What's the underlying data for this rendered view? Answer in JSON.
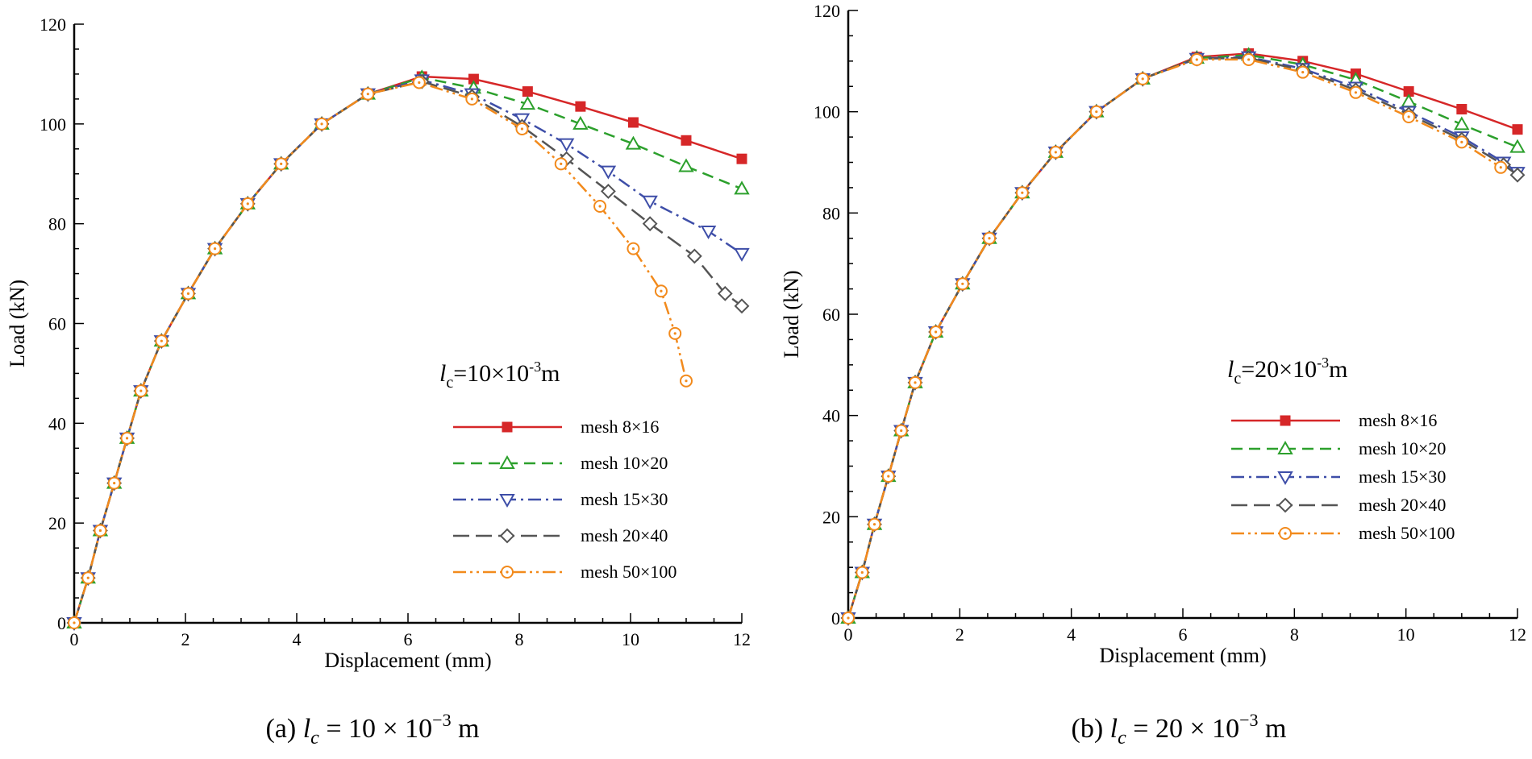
{
  "chart_data": [
    {
      "type": "line",
      "caption_prefix": "(a)",
      "caption_var": "l",
      "caption_sub": "c",
      "caption_rest": " = 10 × 10",
      "caption_exp": "−3",
      "caption_unit": " m",
      "annotation": {
        "var": "l",
        "sub": "c",
        "text": "=10×10",
        "exp": "-3",
        "unit": "m"
      },
      "xlabel": "Displacement (mm)",
      "ylabel": "Load (kN)",
      "xlim": [
        0,
        12
      ],
      "ylim": [
        0,
        120
      ],
      "xticks": [
        0,
        2,
        4,
        6,
        8,
        10,
        12
      ],
      "yticks": [
        0,
        20,
        40,
        60,
        80,
        100,
        120
      ],
      "series": [
        {
          "name": "mesh 8×16",
          "color": "#d62728",
          "marker": "square",
          "dash": "",
          "x": [
            0,
            0.25,
            0.47,
            0.72,
            0.95,
            1.2,
            1.57,
            2.05,
            2.53,
            3.12,
            3.72,
            4.45,
            5.28,
            6.25,
            7.18,
            8.15,
            9.1,
            10.05,
            11.0,
            12.0
          ],
          "y": [
            0,
            9,
            18.5,
            28,
            37,
            46.5,
            56.5,
            66,
            75,
            84,
            92,
            100,
            106,
            109.5,
            109,
            106.5,
            103.5,
            100.3,
            96.7,
            93
          ]
        },
        {
          "name": "mesh 10×20",
          "color": "#2ca02c",
          "marker": "triangle-up",
          "dash": "14,8",
          "x": [
            0,
            0.25,
            0.47,
            0.72,
            0.95,
            1.2,
            1.57,
            2.05,
            2.53,
            3.12,
            3.72,
            4.45,
            5.28,
            6.25,
            7.18,
            8.15,
            9.1,
            10.05,
            11.0,
            12.0
          ],
          "y": [
            0,
            9,
            18.5,
            28,
            37,
            46.5,
            56.5,
            66,
            75,
            84,
            92,
            100,
            106,
            109.3,
            107.2,
            104,
            100,
            96,
            91.5,
            87
          ]
        },
        {
          "name": "mesh 15×30",
          "color": "#3e4ea8",
          "marker": "triangle-down",
          "dash": "16,6,3,6",
          "x": [
            0,
            0.25,
            0.47,
            0.72,
            0.95,
            1.2,
            1.57,
            2.05,
            2.53,
            3.12,
            3.72,
            4.45,
            5.28,
            6.25,
            7.15,
            8.05,
            8.85,
            9.6,
            10.35,
            11.4,
            12.0
          ],
          "y": [
            0,
            9,
            18.5,
            28,
            37,
            46.5,
            56.5,
            66,
            75,
            84,
            92,
            100,
            106,
            108.8,
            106,
            101,
            96,
            90.5,
            84.5,
            78.5,
            74
          ]
        },
        {
          "name": "mesh 20×40",
          "color": "#555555",
          "marker": "diamond",
          "dash": "20,8",
          "x": [
            0,
            0.25,
            0.47,
            0.72,
            0.95,
            1.2,
            1.57,
            2.05,
            2.53,
            3.12,
            3.72,
            4.45,
            5.28,
            6.25,
            7.15,
            8.05,
            8.85,
            9.6,
            10.35,
            11.15,
            11.7,
            12.0
          ],
          "y": [
            0,
            9,
            18.5,
            28,
            37,
            46.5,
            56.5,
            66,
            75,
            84,
            92,
            100,
            106,
            108.5,
            105.5,
            99.5,
            93,
            86.5,
            80,
            73.5,
            66,
            63.5
          ]
        },
        {
          "name": "mesh 50×100",
          "color": "#f28a1c",
          "marker": "circle",
          "dash": "16,5,3,5,3,5",
          "x": [
            0,
            0.25,
            0.47,
            0.72,
            0.95,
            1.2,
            1.57,
            2.05,
            2.53,
            3.12,
            3.72,
            4.45,
            5.28,
            6.2,
            7.15,
            8.05,
            8.75,
            9.45,
            10.05,
            10.55,
            10.8,
            11.0
          ],
          "y": [
            0,
            9,
            18.5,
            28,
            37,
            46.5,
            56.5,
            66,
            75,
            84,
            92,
            100,
            106,
            108.3,
            105,
            99,
            92,
            83.5,
            75,
            66.5,
            58,
            48.5
          ]
        }
      ]
    },
    {
      "type": "line",
      "caption_prefix": "(b)",
      "caption_var": "l",
      "caption_sub": "c",
      "caption_rest": " = 20 × 10",
      "caption_exp": "−3",
      "caption_unit": " m",
      "annotation": {
        "var": "l",
        "sub": "c",
        "text": "=20×10",
        "exp": "-3",
        "unit": "m"
      },
      "xlabel": "Displacement (mm)",
      "ylabel": "Load (kN)",
      "xlim": [
        0,
        12
      ],
      "ylim": [
        0,
        120
      ],
      "xticks": [
        0,
        2,
        4,
        6,
        8,
        10,
        12
      ],
      "yticks": [
        0,
        20,
        40,
        60,
        80,
        100,
        120
      ],
      "series": [
        {
          "name": "mesh 8×16",
          "color": "#d62728",
          "marker": "square",
          "dash": "",
          "x": [
            0,
            0.25,
            0.47,
            0.72,
            0.95,
            1.2,
            1.57,
            2.05,
            2.53,
            3.12,
            3.72,
            4.45,
            5.28,
            6.25,
            7.18,
            8.15,
            9.1,
            10.05,
            11.0,
            12.0
          ],
          "y": [
            0,
            9,
            18.5,
            28,
            37,
            46.5,
            56.5,
            66,
            75,
            84,
            92,
            100,
            106.5,
            110.8,
            111.5,
            110,
            107.5,
            104,
            100.5,
            96.5
          ]
        },
        {
          "name": "mesh 10×20",
          "color": "#2ca02c",
          "marker": "triangle-up",
          "dash": "14,8",
          "x": [
            0,
            0.25,
            0.47,
            0.72,
            0.95,
            1.2,
            1.57,
            2.05,
            2.53,
            3.12,
            3.72,
            4.45,
            5.28,
            6.25,
            7.18,
            8.15,
            9.1,
            10.05,
            11.0,
            12.0
          ],
          "y": [
            0,
            9,
            18.5,
            28,
            37,
            46.5,
            56.5,
            66,
            75,
            84,
            92,
            100,
            106.5,
            110.6,
            111.2,
            109.3,
            106.3,
            102,
            97.5,
            93
          ]
        },
        {
          "name": "mesh 15×30",
          "color": "#3e4ea8",
          "marker": "triangle-down",
          "dash": "16,6,3,6",
          "x": [
            0,
            0.25,
            0.47,
            0.72,
            0.95,
            1.2,
            1.57,
            2.05,
            2.53,
            3.12,
            3.72,
            4.45,
            5.28,
            6.25,
            7.18,
            8.15,
            9.1,
            10.05,
            11.0,
            11.75,
            12.0
          ],
          "y": [
            0,
            9,
            18.5,
            28,
            37,
            46.5,
            56.5,
            66,
            75,
            84,
            92,
            100,
            106.5,
            110.5,
            110.8,
            108.5,
            104.8,
            100,
            95,
            90,
            88
          ]
        },
        {
          "name": "mesh 20×40",
          "color": "#555555",
          "marker": "diamond",
          "dash": "20,8",
          "x": [
            0,
            0.25,
            0.47,
            0.72,
            0.95,
            1.2,
            1.57,
            2.05,
            2.53,
            3.12,
            3.72,
            4.45,
            5.28,
            6.25,
            7.18,
            8.15,
            9.1,
            10.05,
            11.0,
            11.75,
            12.0
          ],
          "y": [
            0,
            9,
            18.5,
            28,
            37,
            46.5,
            56.5,
            66,
            75,
            84,
            92,
            100,
            106.5,
            110.5,
            110.6,
            108.2,
            104.3,
            99.5,
            94.5,
            89.5,
            87.5
          ]
        },
        {
          "name": "mesh 50×100",
          "color": "#f28a1c",
          "marker": "circle",
          "dash": "16,5,3,5,3,5",
          "x": [
            0,
            0.25,
            0.47,
            0.72,
            0.95,
            1.2,
            1.57,
            2.05,
            2.53,
            3.12,
            3.72,
            4.45,
            5.28,
            6.25,
            7.18,
            8.15,
            9.1,
            10.05,
            11.0,
            11.7
          ],
          "y": [
            0,
            9,
            18.5,
            28,
            37,
            46.5,
            56.5,
            66,
            75,
            84,
            92,
            100,
            106.5,
            110.3,
            110.3,
            107.8,
            103.8,
            99,
            94,
            89
          ]
        }
      ]
    }
  ]
}
